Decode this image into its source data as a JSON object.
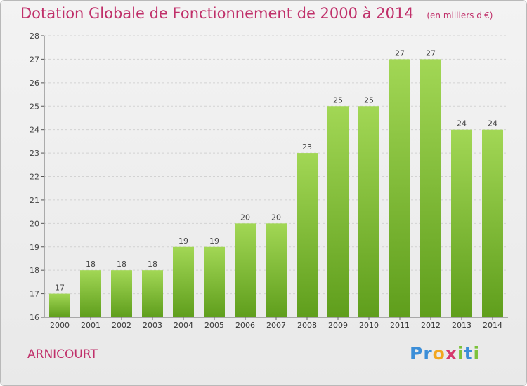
{
  "header": {
    "title": "Dotation Globale de Fonctionnement de 2000 à 2014",
    "subtitle": "(en milliers d'€)"
  },
  "footer": {
    "commune": "ARNICOURT",
    "logo": [
      "P",
      "r",
      "o",
      "x",
      "i",
      "t",
      "i"
    ]
  },
  "colors": {
    "title": "#c0306a",
    "bar_top": "#a2d755",
    "bar_bottom": "#5f9e1c",
    "logo": [
      "#3b8ed8",
      "#3b8ed8",
      "#f2a61e",
      "#d63a6e",
      "#7cc23a",
      "#3b8ed8",
      "#7cc23a"
    ]
  },
  "chart_data": {
    "type": "bar",
    "categories": [
      "2000",
      "2001",
      "2002",
      "2003",
      "2004",
      "2005",
      "2006",
      "2007",
      "2008",
      "2009",
      "2010",
      "2011",
      "2012",
      "2013",
      "2014"
    ],
    "values": [
      17,
      18,
      18,
      18,
      19,
      19,
      20,
      20,
      23,
      25,
      25,
      27,
      27,
      24,
      24
    ],
    "ylim": [
      16,
      28
    ],
    "yticks": [
      16,
      17,
      18,
      19,
      20,
      21,
      22,
      23,
      24,
      25,
      26,
      27,
      28
    ],
    "grid": true,
    "xlabel": "",
    "ylabel": ""
  }
}
